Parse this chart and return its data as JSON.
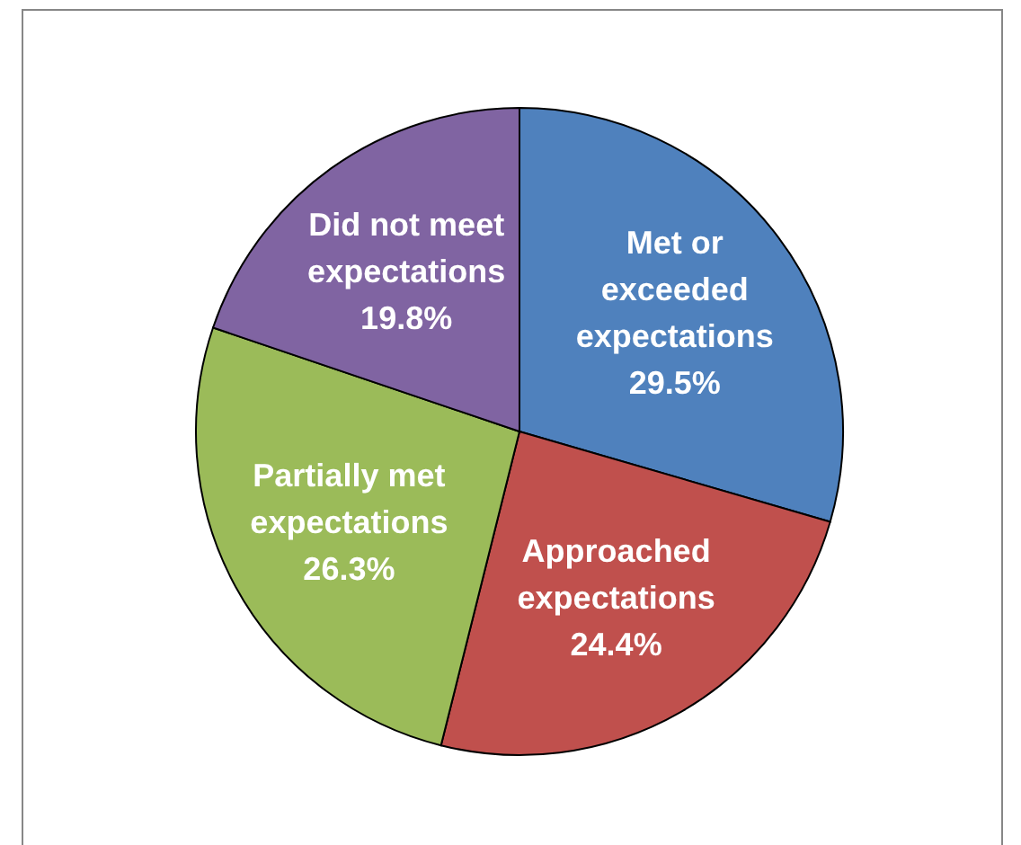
{
  "chart_data": {
    "type": "pie",
    "categories": [
      "Met or exceeded expectations",
      "Approached expectations",
      "Partially met expectations",
      "Did not meet expectations"
    ],
    "values": [
      29.5,
      24.4,
      26.3,
      19.8
    ],
    "value_labels": [
      "29.5%",
      "24.4%",
      "26.3%",
      "19.8%"
    ],
    "colors": [
      "#4f81bd",
      "#c0504d",
      "#9bbb59",
      "#8064a2"
    ]
  }
}
